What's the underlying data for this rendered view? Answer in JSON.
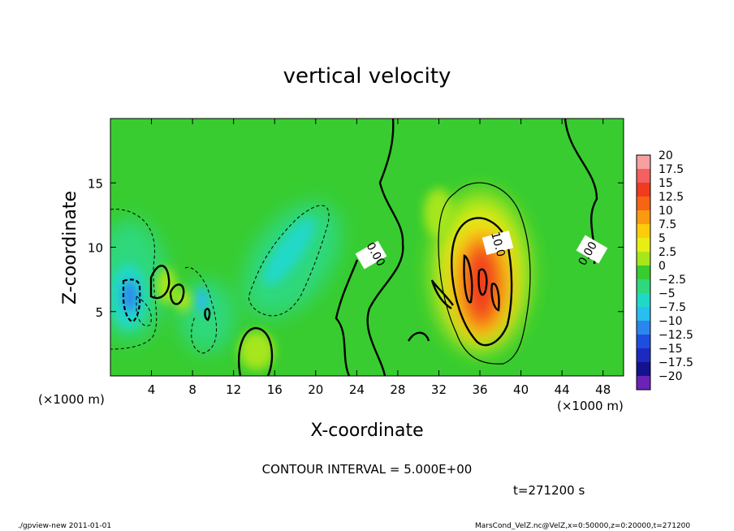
{
  "chart_data": {
    "type": "heatmap",
    "title": "vertical velocity",
    "xlabel": "X-coordinate",
    "ylabel": "Z-coordinate",
    "x_unit_left": "(×1000 m)",
    "x_unit_right": "(×1000 m)",
    "xlim": [
      0,
      50
    ],
    "ylim": [
      0,
      20
    ],
    "xticks": [
      4,
      8,
      12,
      16,
      20,
      24,
      28,
      32,
      36,
      40,
      44,
      48
    ],
    "yticks": [
      5,
      10,
      15
    ],
    "colorbar": {
      "labels": [
        "20",
        "17.5",
        "15",
        "12.5",
        "10",
        "7.5",
        "5",
        "2.5",
        "0",
        "−2.5",
        "−5",
        "−7.5",
        "−10",
        "−12.5",
        "−15",
        "−17.5",
        "−20"
      ],
      "colors": [
        "#f7a0a0",
        "#f46060",
        "#f03b1e",
        "#f76414",
        "#fb9a10",
        "#fdcc0c",
        "#e8ee14",
        "#a6e61a",
        "#38cc30",
        "#2fd87c",
        "#20d8c8",
        "#28bef0",
        "#2a86ee",
        "#1e4ee0",
        "#1d2ac0",
        "#14128e",
        "#6a22b8"
      ]
    },
    "contour_labels": [
      "0.00",
      "10.0",
      "0.00"
    ],
    "contour_interval": "CONTOUR INTERVAL = 5.000E+00",
    "time": "t=271200 s"
  },
  "footer": {
    "left": "./gpview-new   2011-01-01",
    "right": "MarsCond_VelZ.nc@VelZ,x=0:50000,z=0:20000,t=271200"
  }
}
